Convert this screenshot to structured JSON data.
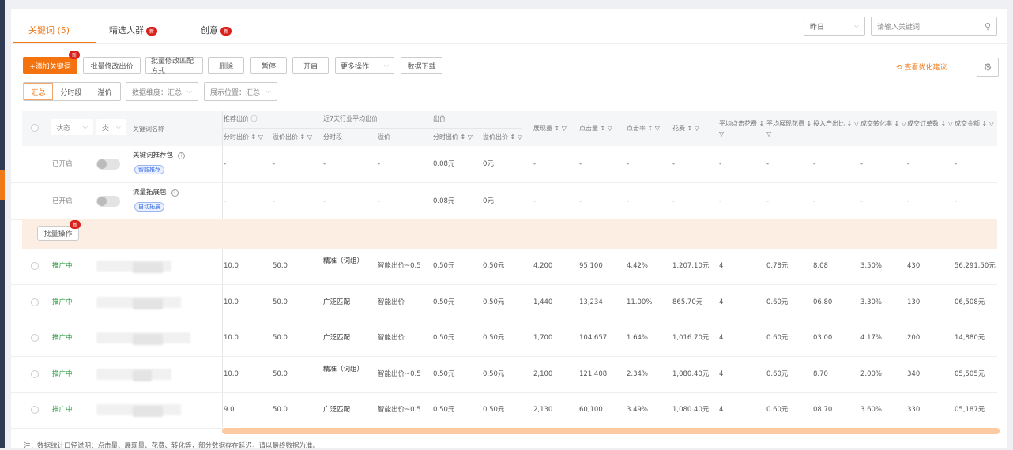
{
  "tabs": [
    {
      "label": "关键词 (5)",
      "active": true
    },
    {
      "label": "精选人群",
      "badge": "新"
    },
    {
      "label": "创意",
      "badge": "新"
    }
  ],
  "header": {
    "date_select": "昨日",
    "search_placeholder": "请输入关键词"
  },
  "toolbar": {
    "add_keyword": "+添加关键词",
    "add_badge": "新",
    "batch_bid": "批量修改出价",
    "batch_match": "批量修改匹配方式",
    "delete": "删除",
    "pause": "暂停",
    "enable": "开启",
    "more": "更多操作",
    "download": "数据下载",
    "optimize_link": "查看优化建议"
  },
  "filters": {
    "segments": [
      "汇总",
      "分时段",
      "溢价"
    ],
    "dimension": "数据维度：汇总",
    "position": "展示位置：汇总"
  },
  "table": {
    "head_selects": [
      "状态",
      "类"
    ],
    "keyword_header": "关键词名称",
    "groups": [
      "推荐出价 ⓘ",
      "近7天行业平均出价",
      "出价"
    ],
    "sub_headers": [
      "分时出价 ↕ ▽",
      "溢价出价 ↕ ▽",
      "分时段",
      "溢价",
      "分时出价 ↕ ▽",
      "溢价出价 ↕ ▽"
    ],
    "metric_headers": [
      "展现量 ↕ ▽",
      "点击量 ↕ ▽",
      "点击率 ↕ ▽",
      "花费 ↕ ▽",
      "平均点击花费 ↕ ▽",
      "平均展现花费 ↕ ▽",
      "投入产出比 ↕ ▽",
      "成交转化率 ↕ ▽",
      "成交订单数 ↕ ▽",
      "成交金额 ↕ ▽"
    ],
    "packages": [
      {
        "status": "已开启",
        "name": "关键词推荐包",
        "tag": "智能推荐",
        "bid": "0.08元",
        "premium": "0元"
      },
      {
        "status": "已开启",
        "name": "流量拓展包",
        "tag": "自动拓展",
        "bid": "0.08元",
        "premium": "0元"
      }
    ],
    "batch_button": "批量操作",
    "batch_badge": "新",
    "dash": "-",
    "rows": [
      {
        "status": "推广中",
        "values": [
          "10.0",
          "50.0",
          "精准（词组）",
          "智能出价~0.5",
          "0.50元",
          "0.50元",
          "4,200",
          "95,100",
          "4.42%",
          "1,207.10元",
          "4",
          "0.78元",
          "8.08",
          "3.50%",
          "430",
          "56,291.50元"
        ]
      },
      {
        "status": "推广中",
        "values": [
          "10.0",
          "50.0",
          "广泛匹配",
          "智能出价",
          "0.50元",
          "0.50元",
          "1,440",
          "13,234",
          "11.00%",
          "865.70元",
          "4",
          "0.60元",
          "06.80",
          "3.30%",
          "130",
          "06,508元"
        ]
      },
      {
        "status": "推广中",
        "values": [
          "10.0",
          "50.0",
          "广泛匹配",
          "智能出价",
          "0.50元",
          "0.50元",
          "1,700",
          "104,657",
          "1.64%",
          "1,016.70元",
          "4",
          "0.60元",
          "03.00",
          "4.17%",
          "200",
          "14,880元"
        ]
      },
      {
        "status": "推广中",
        "values": [
          "10.0",
          "50.0",
          "精准（词组）",
          "智能出价~0.5",
          "0.50元",
          "0.50元",
          "2,100",
          "121,408",
          "2.34%",
          "1,080.40元",
          "4",
          "0.60元",
          "8.70",
          "2.00%",
          "340",
          "05,505元"
        ]
      },
      {
        "status": "推广中",
        "values": [
          "9.0",
          "50.0",
          "广泛匹配",
          "智能出价~0.5",
          "0.50元",
          "0.50元",
          "2,130",
          "60,100",
          "3.49%",
          "1,080.40元",
          "4",
          "0.60元",
          "08.70",
          "3.60%",
          "330",
          "05,187元"
        ]
      }
    ]
  },
  "footnote": "注：数据统计口径说明：点击量、展现量、花费、转化等，部分数据存在延迟，请以最终数据为准。",
  "colors": {
    "accent": "#f5730f",
    "status_green": "#2ea043",
    "badge_red": "#d9201a",
    "highlight_row": "#fdeee4"
  }
}
